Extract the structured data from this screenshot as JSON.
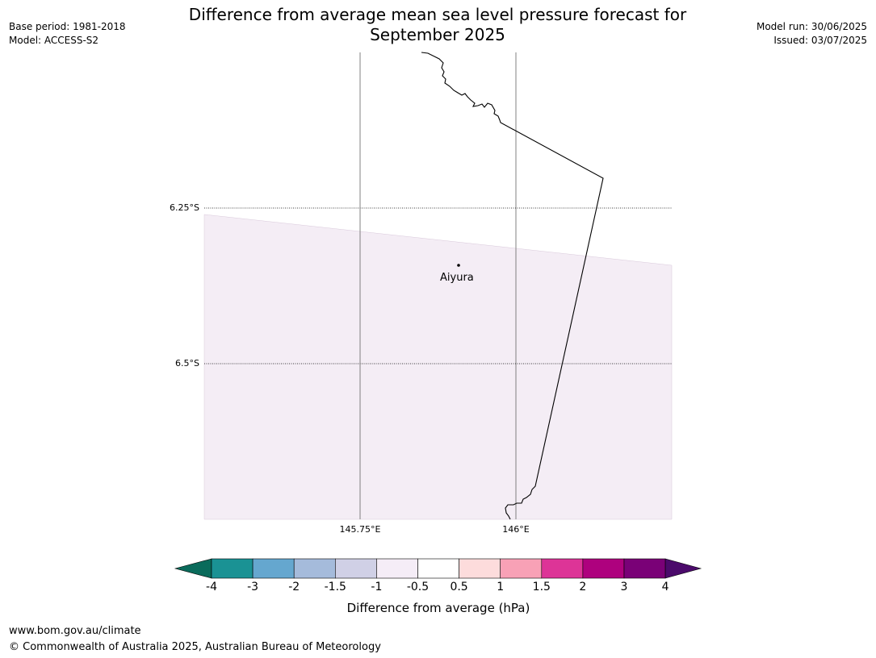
{
  "title_line1": "Difference from average mean sea level pressure forecast for",
  "title_line2": "September 2025",
  "meta_left": {
    "base_period": "Base period: 1981-2018",
    "model": "Model: ACCESS-S2"
  },
  "meta_right": {
    "model_run": "Model run: 30/06/2025",
    "issued": "Issued: 03/07/2025"
  },
  "map": {
    "lat_labels": [
      "6.25°S",
      "6.5°S"
    ],
    "lon_labels": [
      "145.75°E",
      "146°E"
    ],
    "place": "Aiyura",
    "shade_color": "#f4edf5"
  },
  "colorbar": {
    "label": "Difference from average (hPa)",
    "ticks": [
      "-4",
      "-3",
      "-2",
      "-1.5",
      "-1",
      "-0.5",
      "0.5",
      "1",
      "1.5",
      "2",
      "3",
      "4"
    ],
    "low_extend_color": "#0a6b5b",
    "high_extend_color": "#4b0a6b",
    "colors": [
      "#1a9294",
      "#65a7cf",
      "#a5bbdb",
      "#d0d0e6",
      "#f5edf7",
      "#ffffff",
      "#fddcdc",
      "#f8a1b6",
      "#dd3497",
      "#ae017e",
      "#7a0177"
    ]
  },
  "footer": {
    "url": "www.bom.gov.au/climate",
    "copyright": "© Commonwealth of Australia 2025, Australian Bureau of Meteorology"
  }
}
